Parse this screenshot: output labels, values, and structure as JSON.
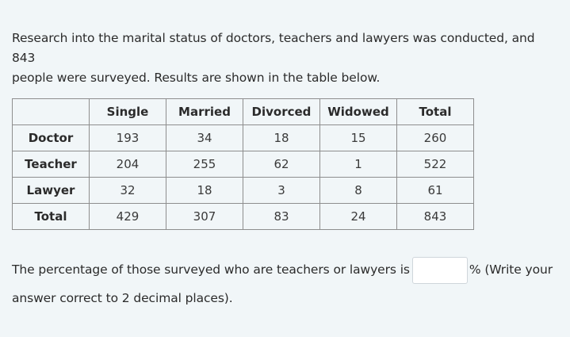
{
  "intro": {
    "line1": "Research into the marital status of doctors, teachers and lawyers was conducted, and 843",
    "line2": "people were surveyed. Results are shown in the table below."
  },
  "table": {
    "columns": [
      "",
      "Single",
      "Married",
      "Divorced",
      "Widowed",
      "Total"
    ],
    "rows": [
      {
        "label": "Doctor",
        "cells": [
          "193",
          "34",
          "18",
          "15",
          "260"
        ]
      },
      {
        "label": "Teacher",
        "cells": [
          "204",
          "255",
          "62",
          "1",
          "522"
        ]
      },
      {
        "label": "Lawyer",
        "cells": [
          "32",
          "18",
          "3",
          "8",
          "61"
        ]
      },
      {
        "label": "Total",
        "cells": [
          "429",
          "307",
          "83",
          "24",
          "843"
        ]
      }
    ]
  },
  "question": {
    "prefix": "The percentage of those surveyed who are teachers or lawyers is",
    "suffix": "% (Write your",
    "line2": "answer correct to 2 decimal places).",
    "answer_value": "",
    "answer_placeholder": ""
  }
}
